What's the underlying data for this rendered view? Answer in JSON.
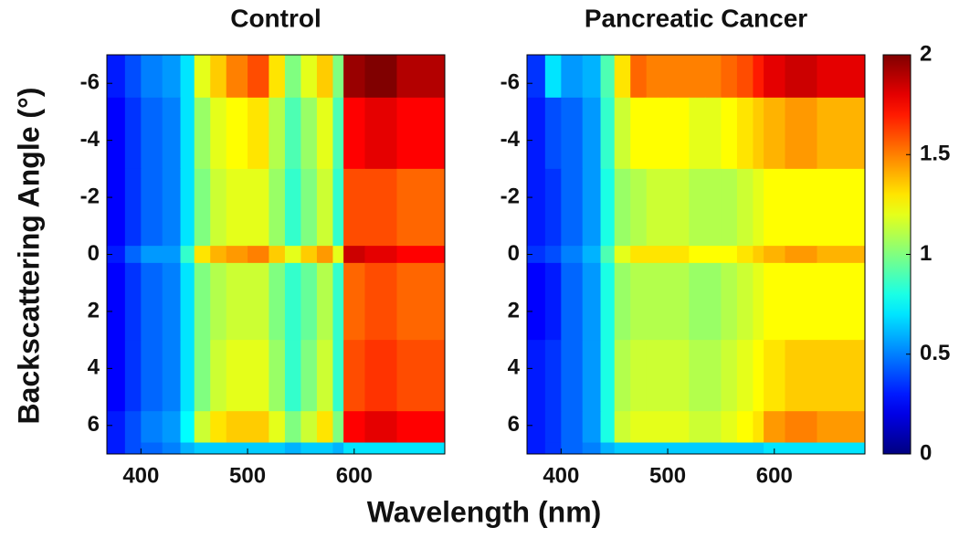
{
  "chart_data": {
    "type": "heatmap",
    "xlabel": "Wavelength (nm)",
    "ylabel": "Backscattering Angle (°)",
    "xlim": [
      368,
      685
    ],
    "ylim": [
      7,
      -7
    ],
    "xticks": [
      400,
      500,
      600
    ],
    "yticks": [
      -6,
      -4,
      -2,
      0,
      2,
      4,
      6
    ],
    "colormap": "jet",
    "zlim": [
      0,
      2
    ],
    "zticks": [
      0,
      0.5,
      1,
      1.5,
      2
    ],
    "x_edges": [
      368,
      385,
      400,
      420,
      437,
      450,
      465,
      480,
      500,
      520,
      535,
      550,
      565,
      580,
      590,
      610,
      640,
      685
    ],
    "y_edges": [
      -7,
      -5.5,
      -3,
      -0.3,
      0.3,
      3,
      5.5,
      6.6,
      7
    ],
    "panels": [
      {
        "title": "Control",
        "z": [
          [
            0.3,
            0.4,
            0.5,
            0.55,
            0.7,
            1.2,
            1.35,
            1.5,
            1.6,
            1.3,
            1.0,
            1.2,
            1.35,
            1.0,
            1.95,
            2.0,
            1.9
          ],
          [
            0.25,
            0.35,
            0.45,
            0.5,
            0.7,
            1.05,
            1.2,
            1.25,
            1.3,
            1.1,
            0.9,
            1.05,
            1.2,
            0.9,
            1.75,
            1.8,
            1.75
          ],
          [
            0.25,
            0.35,
            0.45,
            0.5,
            0.7,
            1.0,
            1.15,
            1.2,
            1.2,
            1.05,
            0.85,
            1.0,
            1.15,
            0.85,
            1.6,
            1.6,
            1.55
          ],
          [
            0.3,
            0.45,
            0.55,
            0.55,
            0.85,
            1.3,
            1.4,
            1.45,
            1.5,
            1.35,
            1.2,
            1.35,
            1.45,
            1.2,
            1.85,
            1.8,
            1.75
          ],
          [
            0.25,
            0.35,
            0.45,
            0.5,
            0.7,
            1.0,
            1.1,
            1.15,
            1.15,
            1.0,
            0.85,
            0.95,
            1.1,
            0.85,
            1.55,
            1.6,
            1.55
          ],
          [
            0.25,
            0.35,
            0.45,
            0.5,
            0.7,
            1.0,
            1.15,
            1.2,
            1.2,
            1.05,
            0.85,
            1.0,
            1.15,
            0.85,
            1.6,
            1.65,
            1.6
          ],
          [
            0.3,
            0.4,
            0.5,
            0.55,
            0.75,
            1.15,
            1.3,
            1.35,
            1.35,
            1.2,
            1.0,
            1.15,
            1.3,
            1.0,
            1.75,
            1.8,
            1.75
          ],
          [
            0.3,
            0.4,
            0.45,
            0.5,
            0.6,
            0.65,
            0.65,
            0.65,
            0.65,
            0.65,
            0.6,
            0.65,
            0.65,
            0.6,
            0.7,
            0.7,
            0.7
          ]
        ]
      },
      {
        "title": "Pancreatic Cancer",
        "z": [
          [
            0.35,
            0.7,
            0.55,
            0.6,
            0.9,
            1.3,
            1.55,
            1.5,
            1.5,
            1.5,
            1.5,
            1.55,
            1.6,
            1.7,
            1.8,
            1.85,
            1.8
          ],
          [
            0.3,
            0.4,
            0.45,
            0.55,
            0.85,
            1.15,
            1.25,
            1.25,
            1.25,
            1.2,
            1.2,
            1.25,
            1.3,
            1.35,
            1.4,
            1.45,
            1.4
          ],
          [
            0.3,
            0.35,
            0.45,
            0.55,
            0.8,
            1.05,
            1.1,
            1.15,
            1.15,
            1.1,
            1.1,
            1.1,
            1.15,
            1.2,
            1.25,
            1.25,
            1.25
          ],
          [
            0.35,
            0.4,
            0.5,
            0.6,
            0.9,
            1.2,
            1.3,
            1.3,
            1.3,
            1.25,
            1.25,
            1.25,
            1.3,
            1.35,
            1.4,
            1.45,
            1.4
          ],
          [
            0.25,
            0.3,
            0.45,
            0.55,
            0.8,
            1.05,
            1.1,
            1.1,
            1.1,
            1.05,
            1.05,
            1.1,
            1.15,
            1.2,
            1.25,
            1.25,
            1.25
          ],
          [
            0.3,
            0.35,
            0.45,
            0.55,
            0.8,
            1.1,
            1.15,
            1.15,
            1.15,
            1.1,
            1.1,
            1.15,
            1.2,
            1.25,
            1.3,
            1.35,
            1.35
          ],
          [
            0.3,
            0.35,
            0.45,
            0.55,
            0.8,
            1.15,
            1.2,
            1.2,
            1.2,
            1.15,
            1.15,
            1.2,
            1.25,
            1.3,
            1.45,
            1.5,
            1.45
          ],
          [
            0.3,
            0.35,
            0.45,
            0.5,
            0.6,
            0.65,
            0.65,
            0.65,
            0.65,
            0.65,
            0.65,
            0.65,
            0.65,
            0.65,
            0.7,
            0.7,
            0.7
          ]
        ]
      }
    ]
  }
}
